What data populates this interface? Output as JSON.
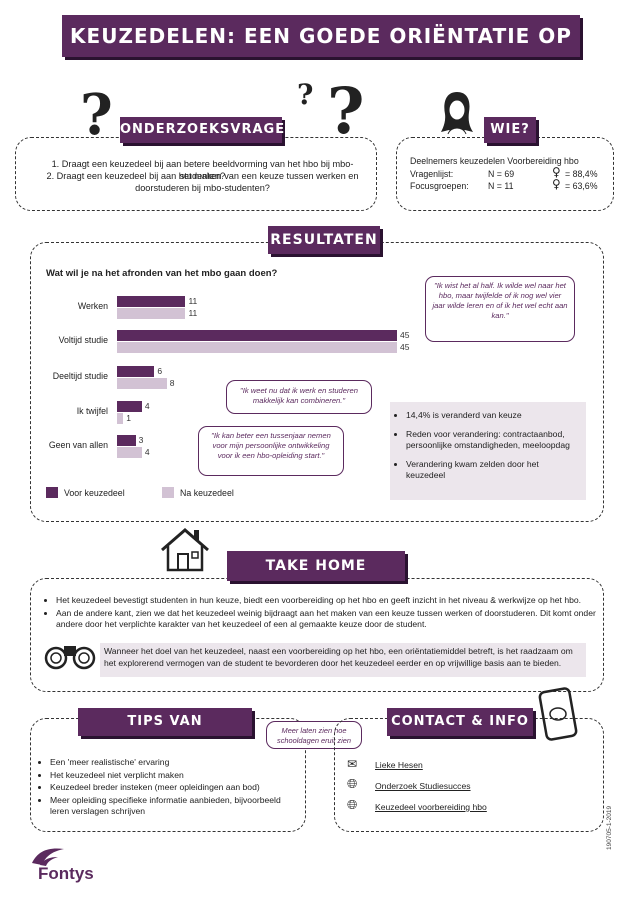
{
  "title": "KEUZEDELEN: EEN GOEDE ORIËNTATIE OP HET HBO?",
  "onderzoeksvragen": {
    "heading": "ONDERZOEKSVRAGEN",
    "q1": "1. Draagt een keuzedeel bij aan betere beeldvorming van het hbo bij mbo-studenten?",
    "q2a": "2. Draagt een keuzedeel bij aan het maken van een keuze tussen werken en",
    "q2b": "doorstuderen bij mbo-studenten?"
  },
  "wie": {
    "heading": "WIE?",
    "line1": "Deelnemers keuzedelen Voorbereiding hbo",
    "row1_label": "Vragenlijst:",
    "row1_n": "N = 69",
    "row1_pct": "= 88,4%",
    "row2_label": "Focusgroepen:",
    "row2_n": "N = 11",
    "row2_pct": "= 63,6%",
    "female_symbol": "♀"
  },
  "resultaten": {
    "heading": "RESULTATEN",
    "question": "Wat wil je na het afronden van het mbo gaan doen?",
    "legend_voor": "Voor keuzedeel",
    "legend_na": "Na keuzedeel",
    "quote1": "\"Ik wist het al half. Ik wilde wel naar het hbo, maar twijfelde of ik nog wel vier jaar wilde leren en of ik het wel echt aan kan.\"",
    "quote2": "\"Ik weet nu dat ik werk en studeren makkelijk kan combineren.\"",
    "quote3": "\"Ik kan beter een tussenjaar nemen voor mijn persoonlijke ontwikkeling voor ik een hbo-opleiding start.\"",
    "facts": [
      "14,4% is veranderd van keuze",
      "Reden voor verandering: contractaanbod, persoonlijke omstandigheden, meeloopdag",
      "Verandering kwam zelden door het keuzedeel"
    ]
  },
  "chart_data": {
    "type": "bar",
    "orientation": "horizontal",
    "categories": [
      "Werken",
      "Voltijd studie",
      "Deeltijd studie",
      "Ik twijfel",
      "Geen van allen"
    ],
    "series": [
      {
        "name": "Voor keuzedeel",
        "values": [
          11,
          45,
          6,
          4,
          3
        ],
        "color": "#5b2a5e"
      },
      {
        "name": "Na keuzedeel",
        "values": [
          11,
          45,
          8,
          1,
          4
        ],
        "color": "#d2c2d4"
      }
    ],
    "title": "Wat wil je na het afronden van het mbo gaan doen?",
    "xlim": [
      0,
      45
    ],
    "legend": "bottom"
  },
  "takehome": {
    "heading": "TAKE HOME MESSAGE",
    "b1": "Het keuzedeel bevestigt studenten in hun keuze, biedt een voorbereiding op het hbo en geeft inzicht in het niveau & werkwijze op het hbo.",
    "b2": "Aan de andere kant, zien we dat het keuzedeel weinig bijdraagt aan het maken van een keuze tussen werken of doorstuderen. Dit komt onder andere door het verplichte karakter van het keuzedeel of een al gemaakte keuze door de student.",
    "advice": "Wanneer het doel van het keuzedeel, naast een voorbereiding op het hbo, een oriëntatiemiddel betreft, is het raadzaam om het explorerend vermogen van de student te bevorderen door het keuzedeel eerder en op vrijwillige basis aan te bieden."
  },
  "tips": {
    "heading": "TIPS VAN STUDENTEN",
    "bubble": "Meer laten zien hoe schooldagen eruit zien",
    "items": [
      "Een 'meer realistische' ervaring",
      "Het keuzedeel niet verplicht maken",
      "Keuzedeel breder insteken (meer opleidingen aan bod)",
      "Meer opleiding specifieke informatie aanbieden, bijvoorbeeld leren verslagen schrijven"
    ]
  },
  "contact": {
    "heading": "CONTACT & INFO",
    "links": [
      "Lieke Hesen",
      "Onderzoek Studiesucces",
      "Keuzedeel voorbereiding hbo"
    ]
  },
  "footer": {
    "logo": "Fontys",
    "code": "190705-1-2019"
  },
  "colors": {
    "accent": "#5b2a5e",
    "accent_light": "#d2c2d4",
    "panel": "#ece6ec"
  }
}
